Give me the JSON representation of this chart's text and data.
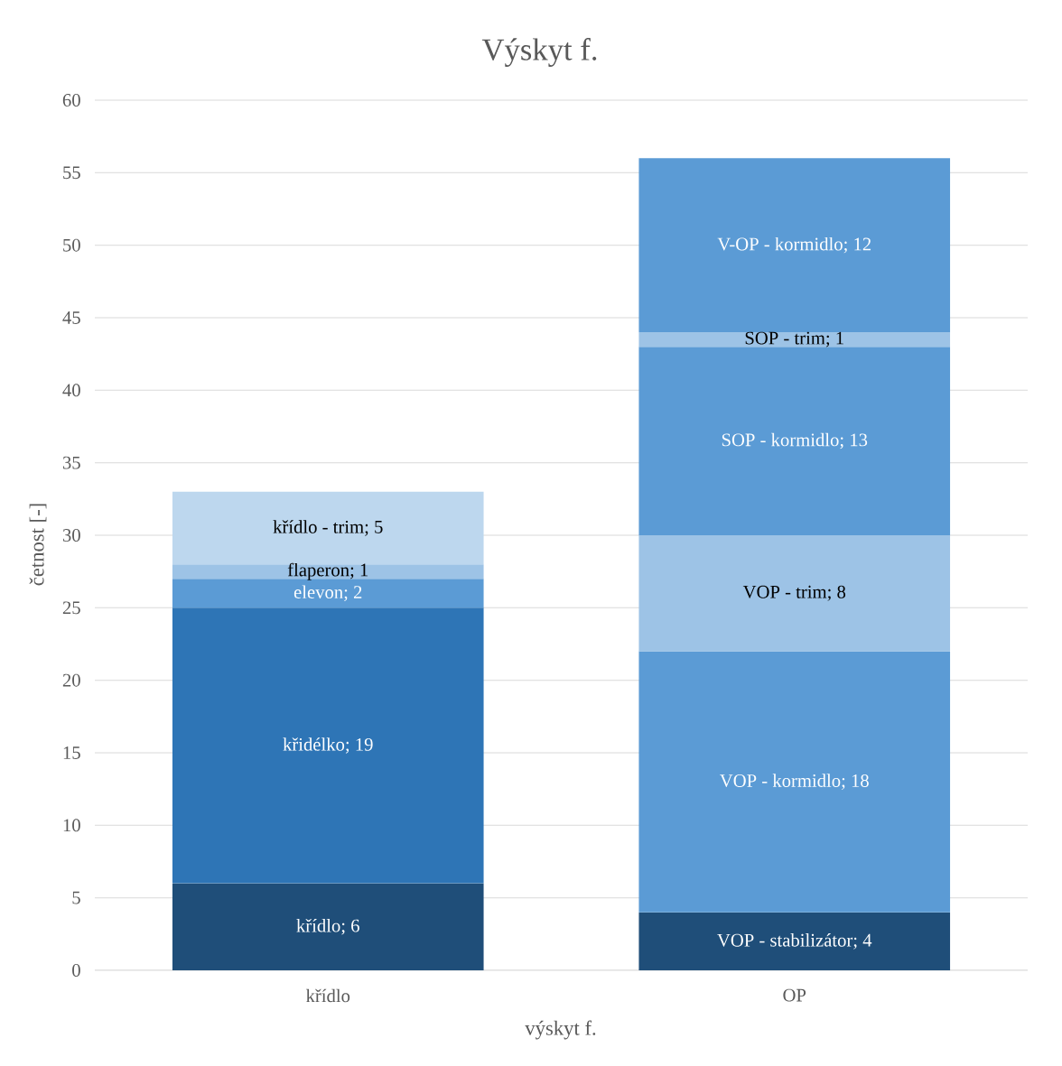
{
  "chart_data": {
    "type": "bar",
    "stacked": true,
    "title": "Výskyt f.",
    "xlabel": "výskyt f.",
    "ylabel": "četnost [-]",
    "categories": [
      "křídlo",
      "OP"
    ],
    "series": [
      {
        "color": "#1f4e79",
        "values": [
          6,
          null
        ],
        "value_labels": [
          "křídlo; 6",
          null
        ]
      },
      {
        "color": "#1f4e79",
        "values": [
          null,
          4
        ],
        "value_labels": [
          null,
          "VOP - stabilizátor; 4"
        ]
      },
      {
        "color": "#2e75b6",
        "values": [
          19,
          null
        ],
        "value_labels": [
          "křidélko; 19",
          null
        ]
      },
      {
        "color": "#5b9bd5",
        "values": [
          null,
          18
        ],
        "value_labels": [
          null,
          "VOP - kormidlo; 18"
        ]
      },
      {
        "color": "#5b9bd5",
        "values": [
          2,
          null
        ],
        "value_labels": [
          "elevon; 2",
          null
        ]
      },
      {
        "color": "#9dc3e6",
        "values": [
          null,
          8
        ],
        "value_labels": [
          null,
          "VOP - trim; 8"
        ]
      },
      {
        "color": "#9dc3e6",
        "values": [
          1,
          null
        ],
        "value_labels": [
          "flaperon; 1",
          null
        ]
      },
      {
        "color": "#5b9bd5",
        "values": [
          null,
          13
        ],
        "value_labels": [
          null,
          "SOP - kormidlo; 13"
        ]
      },
      {
        "color": "#bdd7ee",
        "values": [
          5,
          null
        ],
        "value_labels": [
          "křídlo - trim; 5",
          null
        ]
      },
      {
        "color": "#9dc3e6",
        "values": [
          null,
          1
        ],
        "value_labels": [
          null,
          "SOP - trim; 1"
        ]
      },
      {
        "color": "#5b9bd5",
        "values": [
          null,
          12
        ],
        "value_labels": [
          null,
          "V-OP - kormidlo; 12"
        ]
      }
    ],
    "ylim": [
      0,
      60
    ],
    "yticks": [
      0,
      5,
      10,
      15,
      20,
      25,
      30,
      35,
      40,
      45,
      50,
      55,
      60
    ],
    "grid": "y"
  }
}
